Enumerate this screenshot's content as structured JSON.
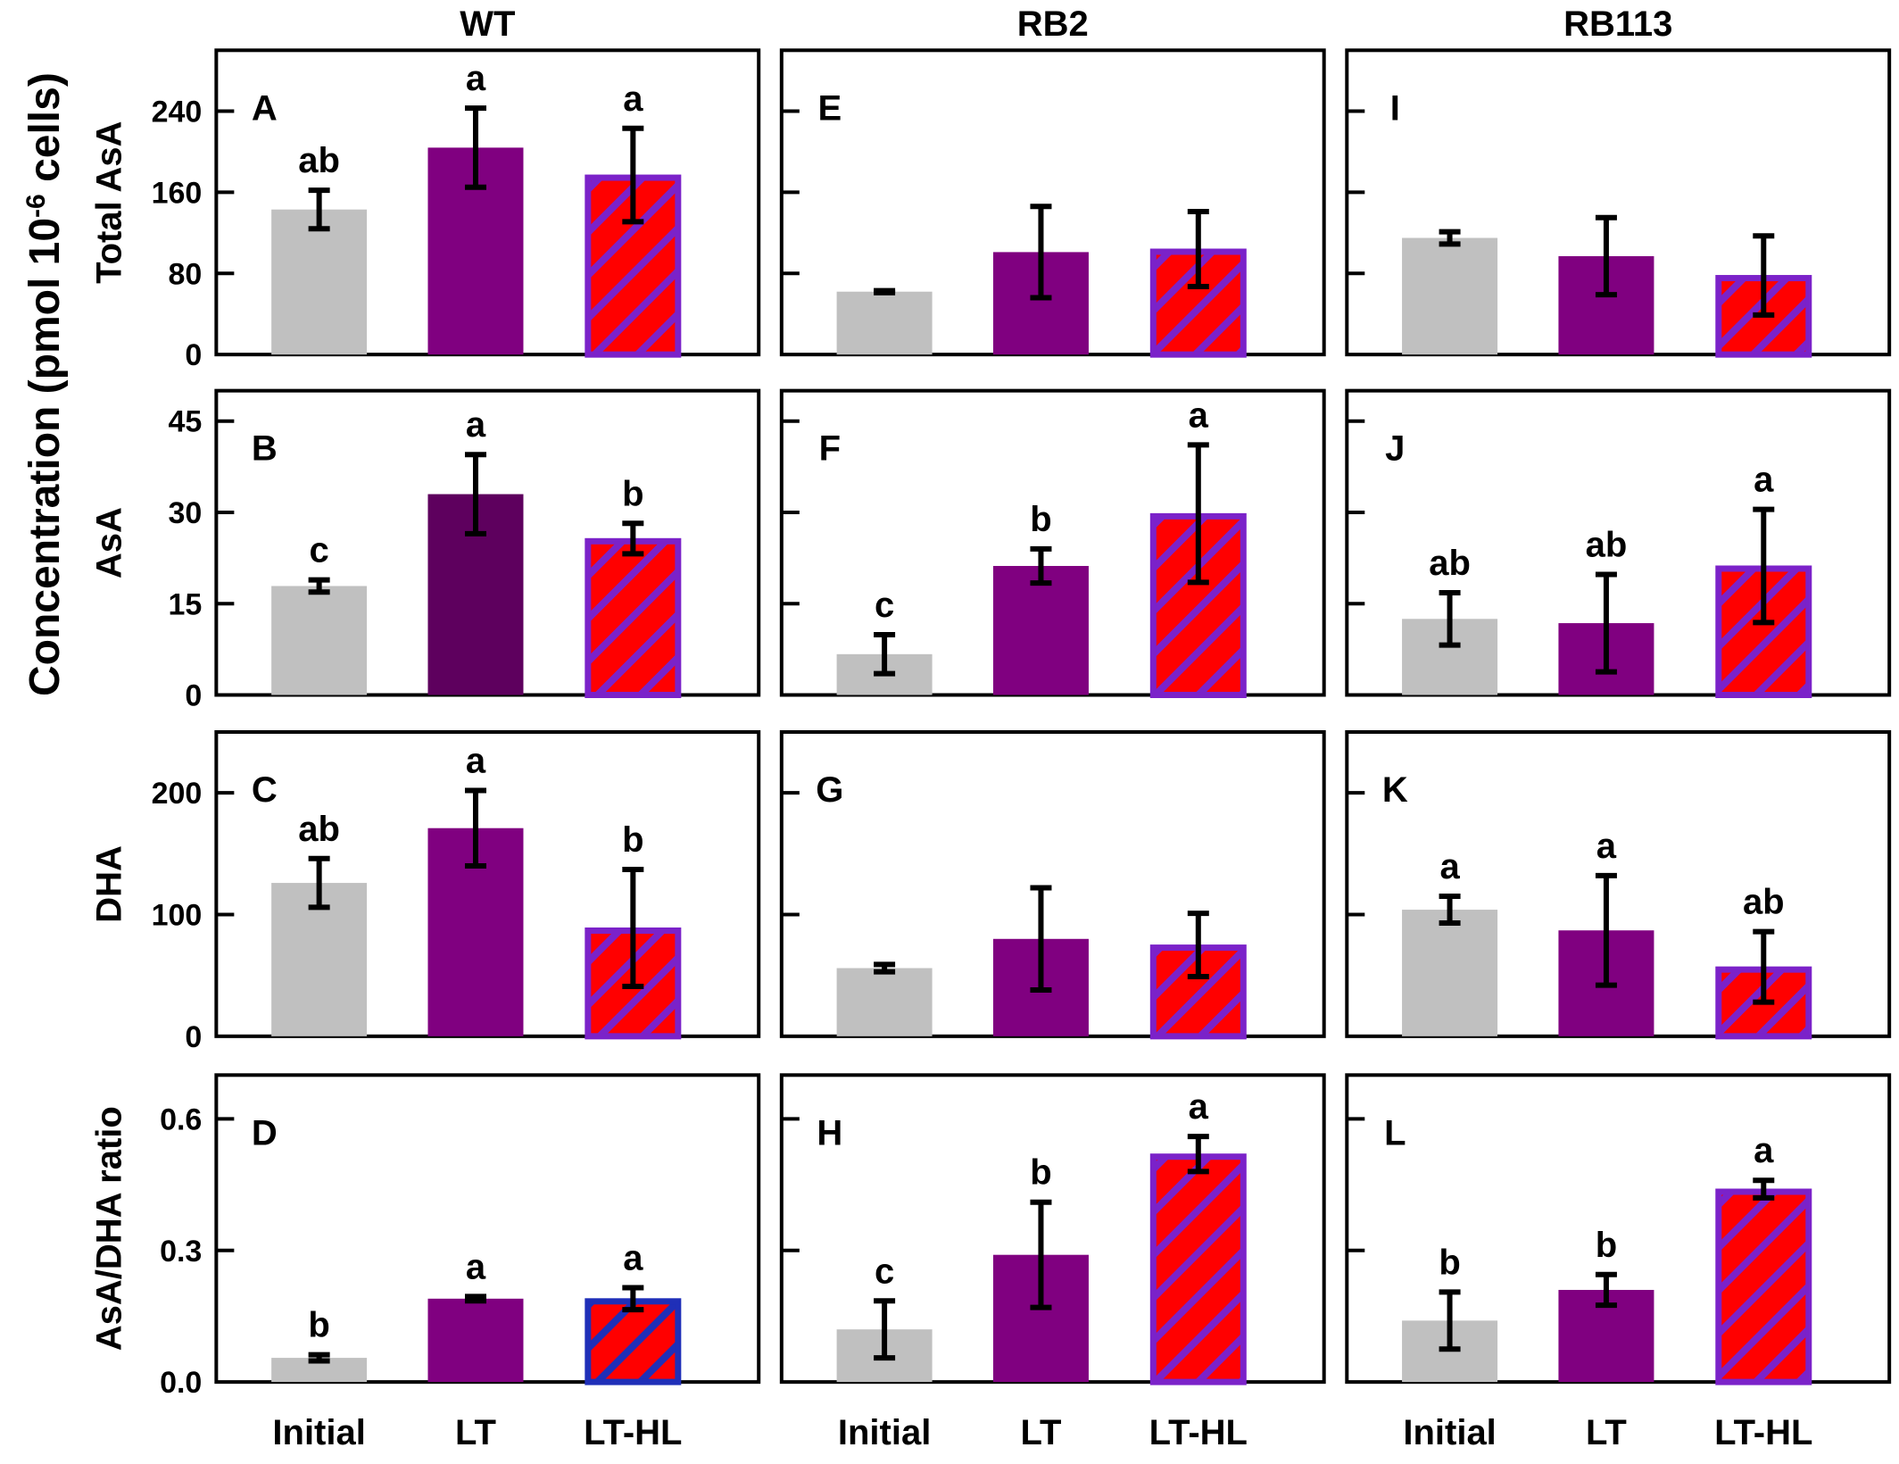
{
  "figure": {
    "y_axis_label": "Concentration (pmol 10",
    "y_axis_label_sup": "-6",
    "y_axis_label_tail": " cells)",
    "columns": [
      "WT",
      "RB2",
      "RB113"
    ],
    "rows": [
      "Total AsA",
      "AsA",
      "DHA",
      "AsA/DHA ratio"
    ],
    "categories": [
      "Initial",
      "LT",
      "LT-HL"
    ]
  },
  "colors": {
    "initial": "#c0c0c0",
    "lt": "#800080",
    "lt_dark": "#5e005e",
    "lthl_fill": "#ff0000",
    "lthl_stripe": "#7b22c9",
    "lthl_stripe_blue": "#1f2fb8"
  },
  "chart_data": [
    {
      "type": "bar",
      "panel": "A",
      "column": "WT",
      "row": "Total AsA",
      "categories": [
        "Initial",
        "LT",
        "LT-HL"
      ],
      "values": [
        143,
        204,
        177
      ],
      "errors": [
        19,
        39,
        46
      ],
      "letters": [
        "ab",
        "a",
        "a"
      ],
      "ylim": [
        0,
        300
      ],
      "yticks": [
        0,
        80,
        160,
        240
      ]
    },
    {
      "type": "bar",
      "panel": "E",
      "column": "RB2",
      "row": "Total AsA",
      "categories": [
        "Initial",
        "LT",
        "LT-HL"
      ],
      "values": [
        62,
        101,
        104
      ],
      "errors": [
        1,
        45,
        37
      ],
      "letters": [
        "",
        "",
        ""
      ],
      "ylim": [
        0,
        300
      ],
      "yticks": [
        0,
        80,
        160,
        240
      ]
    },
    {
      "type": "bar",
      "panel": "I",
      "column": "RB113",
      "row": "Total AsA",
      "categories": [
        "Initial",
        "LT",
        "LT-HL"
      ],
      "values": [
        115,
        97,
        78
      ],
      "errors": [
        6,
        38,
        39
      ],
      "letters": [
        "",
        "",
        ""
      ],
      "ylim": [
        0,
        300
      ],
      "yticks": [
        0,
        80,
        160,
        240
      ]
    },
    {
      "type": "bar",
      "panel": "B",
      "column": "WT",
      "row": "AsA",
      "categories": [
        "Initial",
        "LT",
        "LT-HL"
      ],
      "values": [
        17.9,
        33,
        25.7
      ],
      "errors": [
        1,
        6.5,
        2.5
      ],
      "letters": [
        "c",
        "a",
        "b"
      ],
      "ylim": [
        0,
        50
      ],
      "yticks": [
        0,
        15,
        30,
        45
      ]
    },
    {
      "type": "bar",
      "panel": "F",
      "column": "RB2",
      "row": "AsA",
      "categories": [
        "Initial",
        "LT",
        "LT-HL"
      ],
      "values": [
        6.7,
        21.2,
        29.8
      ],
      "errors": [
        3.2,
        2.8,
        11.3
      ],
      "letters": [
        "c",
        "b",
        "a"
      ],
      "ylim": [
        0,
        50
      ],
      "yticks": [
        0,
        15,
        30,
        45
      ]
    },
    {
      "type": "bar",
      "panel": "J",
      "column": "RB113",
      "row": "AsA",
      "categories": [
        "Initial",
        "LT",
        "LT-HL"
      ],
      "values": [
        12.5,
        11.8,
        21.2
      ],
      "errors": [
        4.3,
        8,
        9.3
      ],
      "letters": [
        "ab",
        "ab",
        "a"
      ],
      "ylim": [
        0,
        50
      ],
      "yticks": [
        0,
        15,
        30,
        45
      ]
    },
    {
      "type": "bar",
      "panel": "C",
      "column": "WT",
      "row": "DHA",
      "categories": [
        "Initial",
        "LT",
        "LT-HL"
      ],
      "values": [
        126,
        171,
        89
      ],
      "errors": [
        20,
        31,
        48
      ],
      "letters": [
        "ab",
        "a",
        "b"
      ],
      "ylim": [
        0,
        250
      ],
      "yticks": [
        0,
        100,
        200
      ]
    },
    {
      "type": "bar",
      "panel": "G",
      "column": "RB2",
      "row": "DHA",
      "categories": [
        "Initial",
        "LT",
        "LT-HL"
      ],
      "values": [
        56,
        80,
        75
      ],
      "errors": [
        3,
        42,
        26
      ],
      "letters": [
        "",
        "",
        ""
      ],
      "ylim": [
        0,
        250
      ],
      "yticks": [
        0,
        100,
        200
      ]
    },
    {
      "type": "bar",
      "panel": "K",
      "column": "RB113",
      "row": "DHA",
      "categories": [
        "Initial",
        "LT",
        "LT-HL"
      ],
      "values": [
        104,
        87,
        57
      ],
      "errors": [
        11,
        45,
        29
      ],
      "letters": [
        "a",
        "a",
        "ab"
      ],
      "ylim": [
        0,
        250
      ],
      "yticks": [
        0,
        100,
        200
      ]
    },
    {
      "type": "bar",
      "panel": "D",
      "column": "WT",
      "row": "AsA/DHA ratio",
      "categories": [
        "Initial",
        "LT",
        "LT-HL"
      ],
      "values": [
        0.055,
        0.19,
        0.19
      ],
      "errors": [
        0.007,
        0.005,
        0.025
      ],
      "letters": [
        "b",
        "a",
        "a"
      ],
      "ylim": [
        0,
        0.7
      ],
      "yticks": [
        0.0,
        0.3,
        0.6
      ]
    },
    {
      "type": "bar",
      "panel": "H",
      "column": "RB2",
      "row": "AsA/DHA ratio",
      "categories": [
        "Initial",
        "LT",
        "LT-HL"
      ],
      "values": [
        0.12,
        0.29,
        0.52
      ],
      "errors": [
        0.065,
        0.12,
        0.04
      ],
      "letters": [
        "c",
        "b",
        "a"
      ],
      "ylim": [
        0,
        0.7
      ],
      "yticks": [
        0.0,
        0.3,
        0.6
      ]
    },
    {
      "type": "bar",
      "panel": "L",
      "column": "RB113",
      "row": "AsA/DHA ratio",
      "categories": [
        "Initial",
        "LT",
        "LT-HL"
      ],
      "values": [
        0.14,
        0.21,
        0.44
      ],
      "errors": [
        0.065,
        0.035,
        0.02
      ],
      "letters": [
        "b",
        "b",
        "a"
      ],
      "ylim": [
        0,
        0.7
      ],
      "yticks": [
        0.0,
        0.3,
        0.6
      ]
    }
  ]
}
